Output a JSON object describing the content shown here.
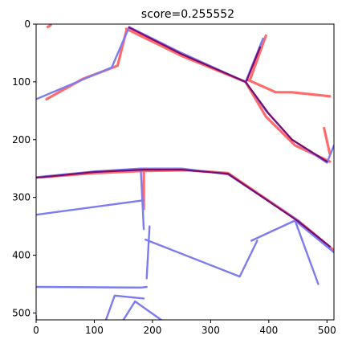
{
  "chart_data": {
    "type": "line",
    "title": "score=0.255552",
    "xlim": [
      0,
      512
    ],
    "ylim": [
      512,
      0
    ],
    "y_inverted": true,
    "grid": false,
    "x_ticks": [
      0,
      100,
      200,
      300,
      400,
      500
    ],
    "y_ticks": [
      0,
      100,
      200,
      300,
      400,
      500
    ],
    "colors": {
      "red": "#ff6b6b",
      "blue": "#7c7cf0",
      "overlap": "#7a0a6e"
    },
    "series": [
      {
        "color": "red",
        "paths": [
          [
            [
              18,
              130
            ],
            [
              80,
              95
            ],
            [
              140,
              72
            ],
            [
              155,
              12
            ]
          ],
          [
            [
              155,
              8
            ],
            [
              250,
              55
            ],
            [
              360,
              100
            ]
          ],
          [
            [
              360,
              100
            ],
            [
              395,
              160
            ],
            [
              445,
              210
            ],
            [
              505,
              238
            ]
          ],
          [
            [
              365,
              97
            ],
            [
              412,
              118
            ],
            [
              440,
              118
            ],
            [
              505,
              125
            ]
          ],
          [
            [
              368,
              95
            ],
            [
              395,
              20
            ]
          ],
          [
            [
              495,
              180
            ],
            [
              505,
              225
            ]
          ],
          [
            [
              8,
              265
            ],
            [
              100,
              258
            ],
            [
              185,
              254
            ],
            [
              260,
              253
            ],
            [
              330,
              258
            ],
            [
              450,
              340
            ],
            [
              510,
              390
            ]
          ],
          [
            [
              185,
              256
            ],
            [
              185,
              320
            ]
          ],
          [
            [
              20,
              5
            ],
            [
              25,
              2
            ]
          ]
        ]
      },
      {
        "color": "blue",
        "paths": [
          [
            [
              0,
              130
            ],
            [
              130,
              75
            ],
            [
              160,
              5
            ]
          ],
          [
            [
              160,
              5
            ],
            [
              250,
              50
            ],
            [
              360,
              100
            ]
          ],
          [
            [
              360,
              100
            ],
            [
              395,
              150
            ],
            [
              440,
              200
            ],
            [
              500,
              240
            ],
            [
              512,
              210
            ]
          ],
          [
            [
              360,
              100
            ],
            [
              390,
              25
            ]
          ],
          [
            [
              0,
              265
            ],
            [
              100,
              255
            ],
            [
              180,
              250
            ],
            [
              250,
              250
            ],
            [
              330,
              260
            ],
            [
              450,
              340
            ],
            [
              512,
              395
            ]
          ],
          [
            [
              0,
              330
            ],
            [
              185,
              305
            ]
          ],
          [
            [
              180,
              252
            ],
            [
              185,
              355
            ]
          ],
          [
            [
              188,
              373
            ],
            [
              350,
              437
            ],
            [
              380,
              375
            ]
          ],
          [
            [
              370,
              375
            ],
            [
              445,
              340
            ],
            [
              485,
              450
            ]
          ],
          [
            [
              445,
              340
            ],
            [
              512,
              395
            ]
          ],
          [
            [
              0,
              455
            ],
            [
              180,
              456
            ],
            [
              190,
              455
            ]
          ],
          [
            [
              190,
              440
            ],
            [
              195,
              350
            ]
          ],
          [
            [
              120,
              512
            ],
            [
              135,
              470
            ],
            [
              185,
              475
            ]
          ],
          [
            [
              150,
              512
            ],
            [
              170,
              480
            ],
            [
              215,
              512
            ]
          ],
          [
            [
              0,
              512
            ],
            [
              0,
              505
            ]
          ]
        ]
      },
      {
        "color": "overlap",
        "paths": [
          [
            [
              160,
              6
            ],
            [
              250,
              52
            ],
            [
              360,
              100
            ],
            [
              400,
              155
            ],
            [
              440,
              200
            ],
            [
              500,
              238
            ]
          ],
          [
            [
              0,
              266
            ],
            [
              100,
              256
            ],
            [
              185,
              252
            ],
            [
              250,
              252
            ],
            [
              330,
              259
            ],
            [
              450,
              341
            ],
            [
              505,
              385
            ]
          ],
          [
            [
              362,
              98
            ],
            [
              385,
              40
            ]
          ]
        ]
      }
    ]
  }
}
